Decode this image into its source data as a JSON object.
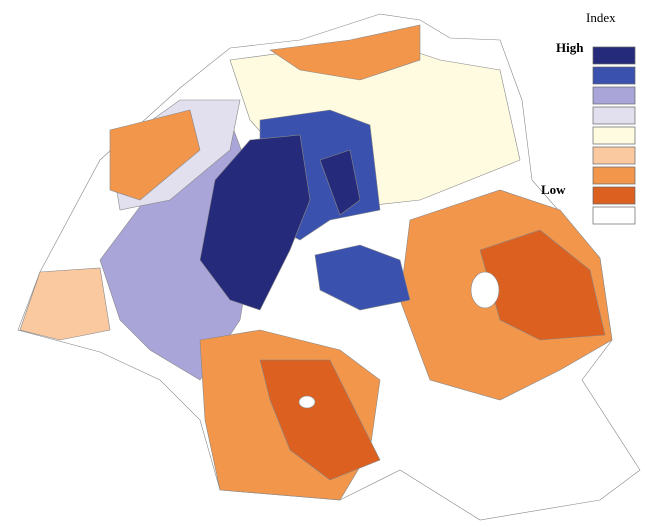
{
  "legend": {
    "title": "Index",
    "high_label": "High",
    "low_label": "Low",
    "colors": [
      "#262a7a",
      "#3a52ad",
      "#a9a5d8",
      "#e2e0ef",
      "#fefbe0",
      "#fbc9a0",
      "#f2964c",
      "#dc6121",
      "#ffffff"
    ]
  }
}
